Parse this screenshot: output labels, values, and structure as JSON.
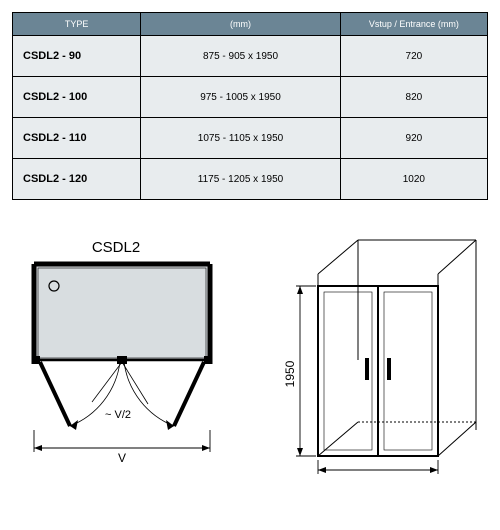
{
  "table": {
    "headers": [
      "TYPE",
      "(mm)",
      "Vstup / Entrance (mm)"
    ],
    "rows": [
      [
        "CSDL2 - 90",
        "875 - 905 x 1950",
        "720"
      ],
      [
        "CSDL2 - 100",
        "975 - 1005 x 1950",
        "820"
      ],
      [
        "CSDL2 - 110",
        "1075 - 1105 x 1950",
        "920"
      ],
      [
        "CSDL2 - 120",
        "1175 - 1205 x 1950",
        "1020"
      ]
    ]
  },
  "topview": {
    "title": "CSDL2",
    "width_label": "V",
    "swing_label": "~ V/2",
    "frame_color": "#000000",
    "shade_color": "#d8dde0"
  },
  "elevation": {
    "height_label": "1950",
    "frame_color": "#000000"
  },
  "colors": {
    "header_bg": "#6b8595",
    "cell_bg": "#e8ecee",
    "border": "#000000"
  }
}
